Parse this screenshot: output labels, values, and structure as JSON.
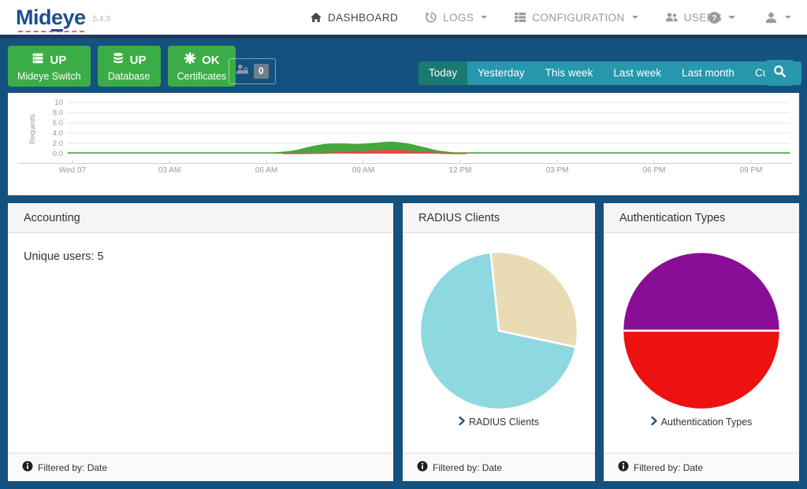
{
  "colors": {
    "brand_blue": "#1c4f8f",
    "page_background_blue": "#15517f",
    "navbar_navy_strip": "#1f3b5e",
    "status_green": "#3bad46",
    "filter_teal": "#2697ac",
    "filter_teal_active": "#187a71"
  },
  "header": {
    "brand": {
      "prefix": "Mid",
      "underlined": "e",
      "suffix": "ye"
    },
    "version": "5.4.3",
    "nav_items": [
      {
        "label": "DASHBOARD",
        "icon": "home-icon",
        "active": true,
        "has_dropdown": false
      },
      {
        "label": "LOGS",
        "icon": "history-icon",
        "active": false,
        "has_dropdown": true
      },
      {
        "label": "CONFIGURATION",
        "icon": "list-icon",
        "active": false,
        "has_dropdown": true
      },
      {
        "label": "USERS",
        "icon": "users-icon",
        "active": false,
        "has_dropdown": true
      }
    ],
    "icon_menus": [
      {
        "icon": "help-icon",
        "has_dropdown": true
      },
      {
        "icon": "user-icon",
        "has_dropdown": true
      }
    ]
  },
  "statusbar": {
    "indicators": [
      {
        "status": "UP",
        "label": "Mideye Switch",
        "icon": "server-icon"
      },
      {
        "status": "UP",
        "label": "Database",
        "icon": "database-icon"
      },
      {
        "status": "OK",
        "label": "Certificates",
        "icon": "certificate-icon"
      }
    ],
    "locked_users": {
      "icon": "user-lock-icon",
      "count": "0"
    },
    "date_filter": {
      "options": [
        "Today",
        "Yesterday",
        "This week",
        "Last week",
        "Last month",
        "Custom"
      ],
      "active": "Today",
      "search_icon": "search-icon"
    }
  },
  "chart_data": [
    {
      "type": "area",
      "name": "requests-timeline",
      "title": "",
      "xlabel": "",
      "ylabel": "Requests",
      "ylim": [
        0,
        10
      ],
      "grid": true,
      "y_ticks": [
        {
          "value": 0,
          "label": "0.0"
        },
        {
          "value": 2,
          "label": "2.0"
        },
        {
          "value": 4,
          "label": "4.0"
        },
        {
          "value": 6,
          "label": "6.0"
        },
        {
          "value": 8,
          "label": "8.0"
        },
        {
          "value": 10,
          "label": "10"
        }
      ],
      "x_ticks": [
        {
          "hour": 0,
          "label": "Wed 07"
        },
        {
          "hour": 3,
          "label": "03 AM"
        },
        {
          "hour": 6,
          "label": "06 AM"
        },
        {
          "hour": 9,
          "label": "09 AM"
        },
        {
          "hour": 12,
          "label": "12 PM"
        },
        {
          "hour": 15,
          "label": "03 PM"
        },
        {
          "hour": 18,
          "label": "06 PM"
        },
        {
          "hour": 21,
          "label": "09 PM"
        }
      ],
      "series": [
        {
          "name": "requests-green",
          "color": "#46a73c",
          "points": [
            [
              -0.15,
              0.12
            ],
            [
              3,
              0.12
            ],
            [
              5,
              0.12
            ],
            [
              6,
              0.12
            ],
            [
              6.4,
              0.18
            ],
            [
              6.9,
              0.55
            ],
            [
              7.4,
              1.3
            ],
            [
              7.9,
              1.8
            ],
            [
              8.4,
              1.85
            ],
            [
              8.8,
              1.75
            ],
            [
              9.3,
              1.95
            ],
            [
              9.8,
              2.2
            ],
            [
              10.1,
              2.1
            ],
            [
              10.5,
              1.7
            ],
            [
              10.9,
              1.1
            ],
            [
              11.3,
              0.5
            ],
            [
              11.7,
              0.18
            ],
            [
              12.1,
              0.12
            ],
            [
              14,
              0.12
            ],
            [
              17,
              0.12
            ],
            [
              20,
              0.12
            ],
            [
              22.2,
              0.12
            ]
          ]
        },
        {
          "name": "requests-red",
          "color": "#e8484d",
          "points": [
            [
              6.5,
              0
            ],
            [
              7.5,
              0.04
            ],
            [
              8.2,
              0.15
            ],
            [
              8.8,
              0.35
            ],
            [
              9.3,
              0.5
            ],
            [
              9.8,
              0.62
            ],
            [
              10.2,
              0.55
            ],
            [
              10.7,
              0.33
            ],
            [
              11.2,
              0.12
            ],
            [
              11.6,
              0.03
            ],
            [
              12.2,
              0
            ]
          ]
        }
      ]
    },
    {
      "type": "pie",
      "name": "radius-clients",
      "start_angle": -6,
      "slices": [
        {
          "value": 30,
          "color": "#e9dcb5"
        },
        {
          "value": 70,
          "color": "#8ed8e0"
        }
      ]
    },
    {
      "type": "pie",
      "name": "authentication-types",
      "start_angle": -90,
      "slices": [
        {
          "value": 50,
          "color": "#8a0d96"
        },
        {
          "value": 50,
          "color": "#ee1111"
        }
      ]
    }
  ],
  "cards": [
    {
      "title": "Accounting",
      "body_text": "Unique users: 5",
      "footer_text": "Filtered by: Date"
    },
    {
      "title": "RADIUS Clients",
      "link_text": "RADIUS Clients",
      "footer_text": "Filtered by: Date"
    },
    {
      "title": "Authentication Types",
      "link_text": "Authentication Types",
      "footer_text": "Filtered by: Date"
    }
  ]
}
